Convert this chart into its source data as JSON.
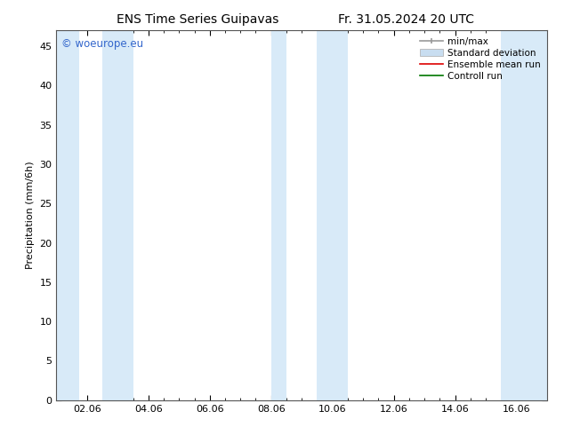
{
  "title_left": "ENS Time Series Guipavas",
  "title_right": "Fr. 31.05.2024 20 UTC",
  "ylabel": "Precipitation (mm/6h)",
  "ylim": [
    0,
    47
  ],
  "yticks": [
    0,
    5,
    10,
    15,
    20,
    25,
    30,
    35,
    40,
    45
  ],
  "xtick_positions": [
    1,
    3,
    5,
    7,
    9,
    11,
    13,
    15
  ],
  "xtick_labels": [
    "02.06",
    "04.06",
    "06.06",
    "08.06",
    "10.06",
    "12.06",
    "14.06",
    "16.06"
  ],
  "xlim": [
    0,
    16
  ],
  "background_color": "#ffffff",
  "plot_bg_color": "#ffffff",
  "shade_color": "#d8eaf8",
  "watermark": "© woeurope.eu",
  "watermark_color": "#3366cc",
  "legend_labels": [
    "min/max",
    "Standard deviation",
    "Ensemble mean run",
    "Controll run"
  ],
  "minmax_color": "#999999",
  "std_color": "#c8ddf0",
  "ensemble_color": "#dd0000",
  "control_color": "#007700",
  "bands": [
    [
      0.0,
      0.75
    ],
    [
      1.5,
      2.5
    ],
    [
      7.0,
      7.5
    ],
    [
      8.5,
      9.5
    ],
    [
      14.5,
      16.0
    ]
  ],
  "title_fontsize": 10,
  "tick_fontsize": 8,
  "label_fontsize": 8,
  "legend_fontsize": 7.5
}
